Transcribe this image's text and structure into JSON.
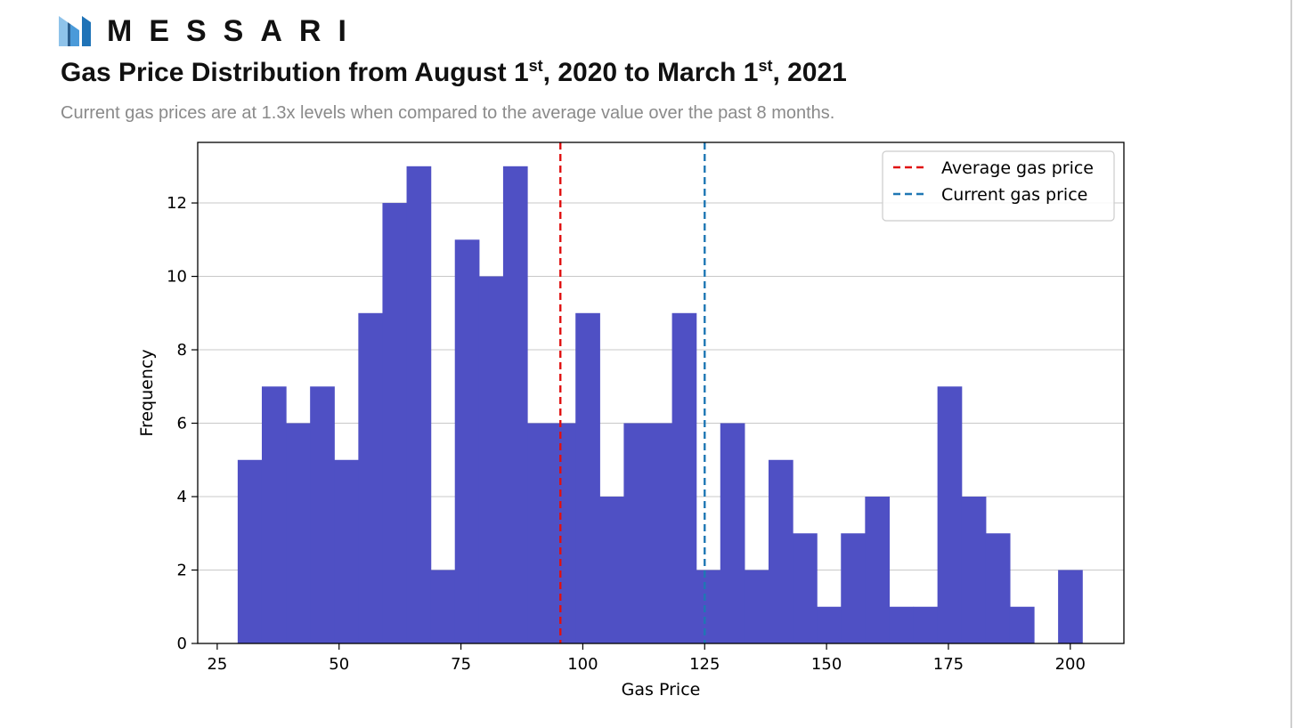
{
  "brand": {
    "name": "MESSARI",
    "logo_icon": "messari-logo-icon",
    "logo_color": "#1f73b7"
  },
  "header": {
    "title_parts": [
      "Gas Price Distribution from August 1",
      "st",
      ", 2020 to March 1",
      "st",
      ", 2021"
    ],
    "subtitle": "Current gas prices are at 1.3x levels when compared to the average value over the past 8 months."
  },
  "chart_data": {
    "type": "bar",
    "xlabel": "Gas Price",
    "ylabel": "Frequency",
    "xlim": [
      21,
      211
    ],
    "ylim": [
      0,
      13.65
    ],
    "xticks": [
      25,
      50,
      75,
      100,
      125,
      150,
      175,
      200
    ],
    "yticks": [
      0,
      2,
      4,
      6,
      8,
      10,
      12
    ],
    "grid": "y",
    "bar_color": "#4f50c4",
    "bins": {
      "start": 29.2,
      "width": 4.95,
      "values": [
        5,
        7,
        6,
        7,
        5,
        9,
        12,
        13,
        2,
        11,
        10,
        13,
        6,
        6,
        9,
        4,
        6,
        6,
        9,
        2,
        6,
        2,
        5,
        3,
        1,
        3,
        4,
        1,
        1,
        7,
        4,
        3,
        1,
        0,
        2
      ]
    },
    "lines": [
      {
        "name": "Average gas price",
        "x": 95.4,
        "color": "#e01010"
      },
      {
        "name": "Current gas price",
        "x": 125,
        "color": "#1f77b4"
      }
    ],
    "legend": "top-right"
  }
}
